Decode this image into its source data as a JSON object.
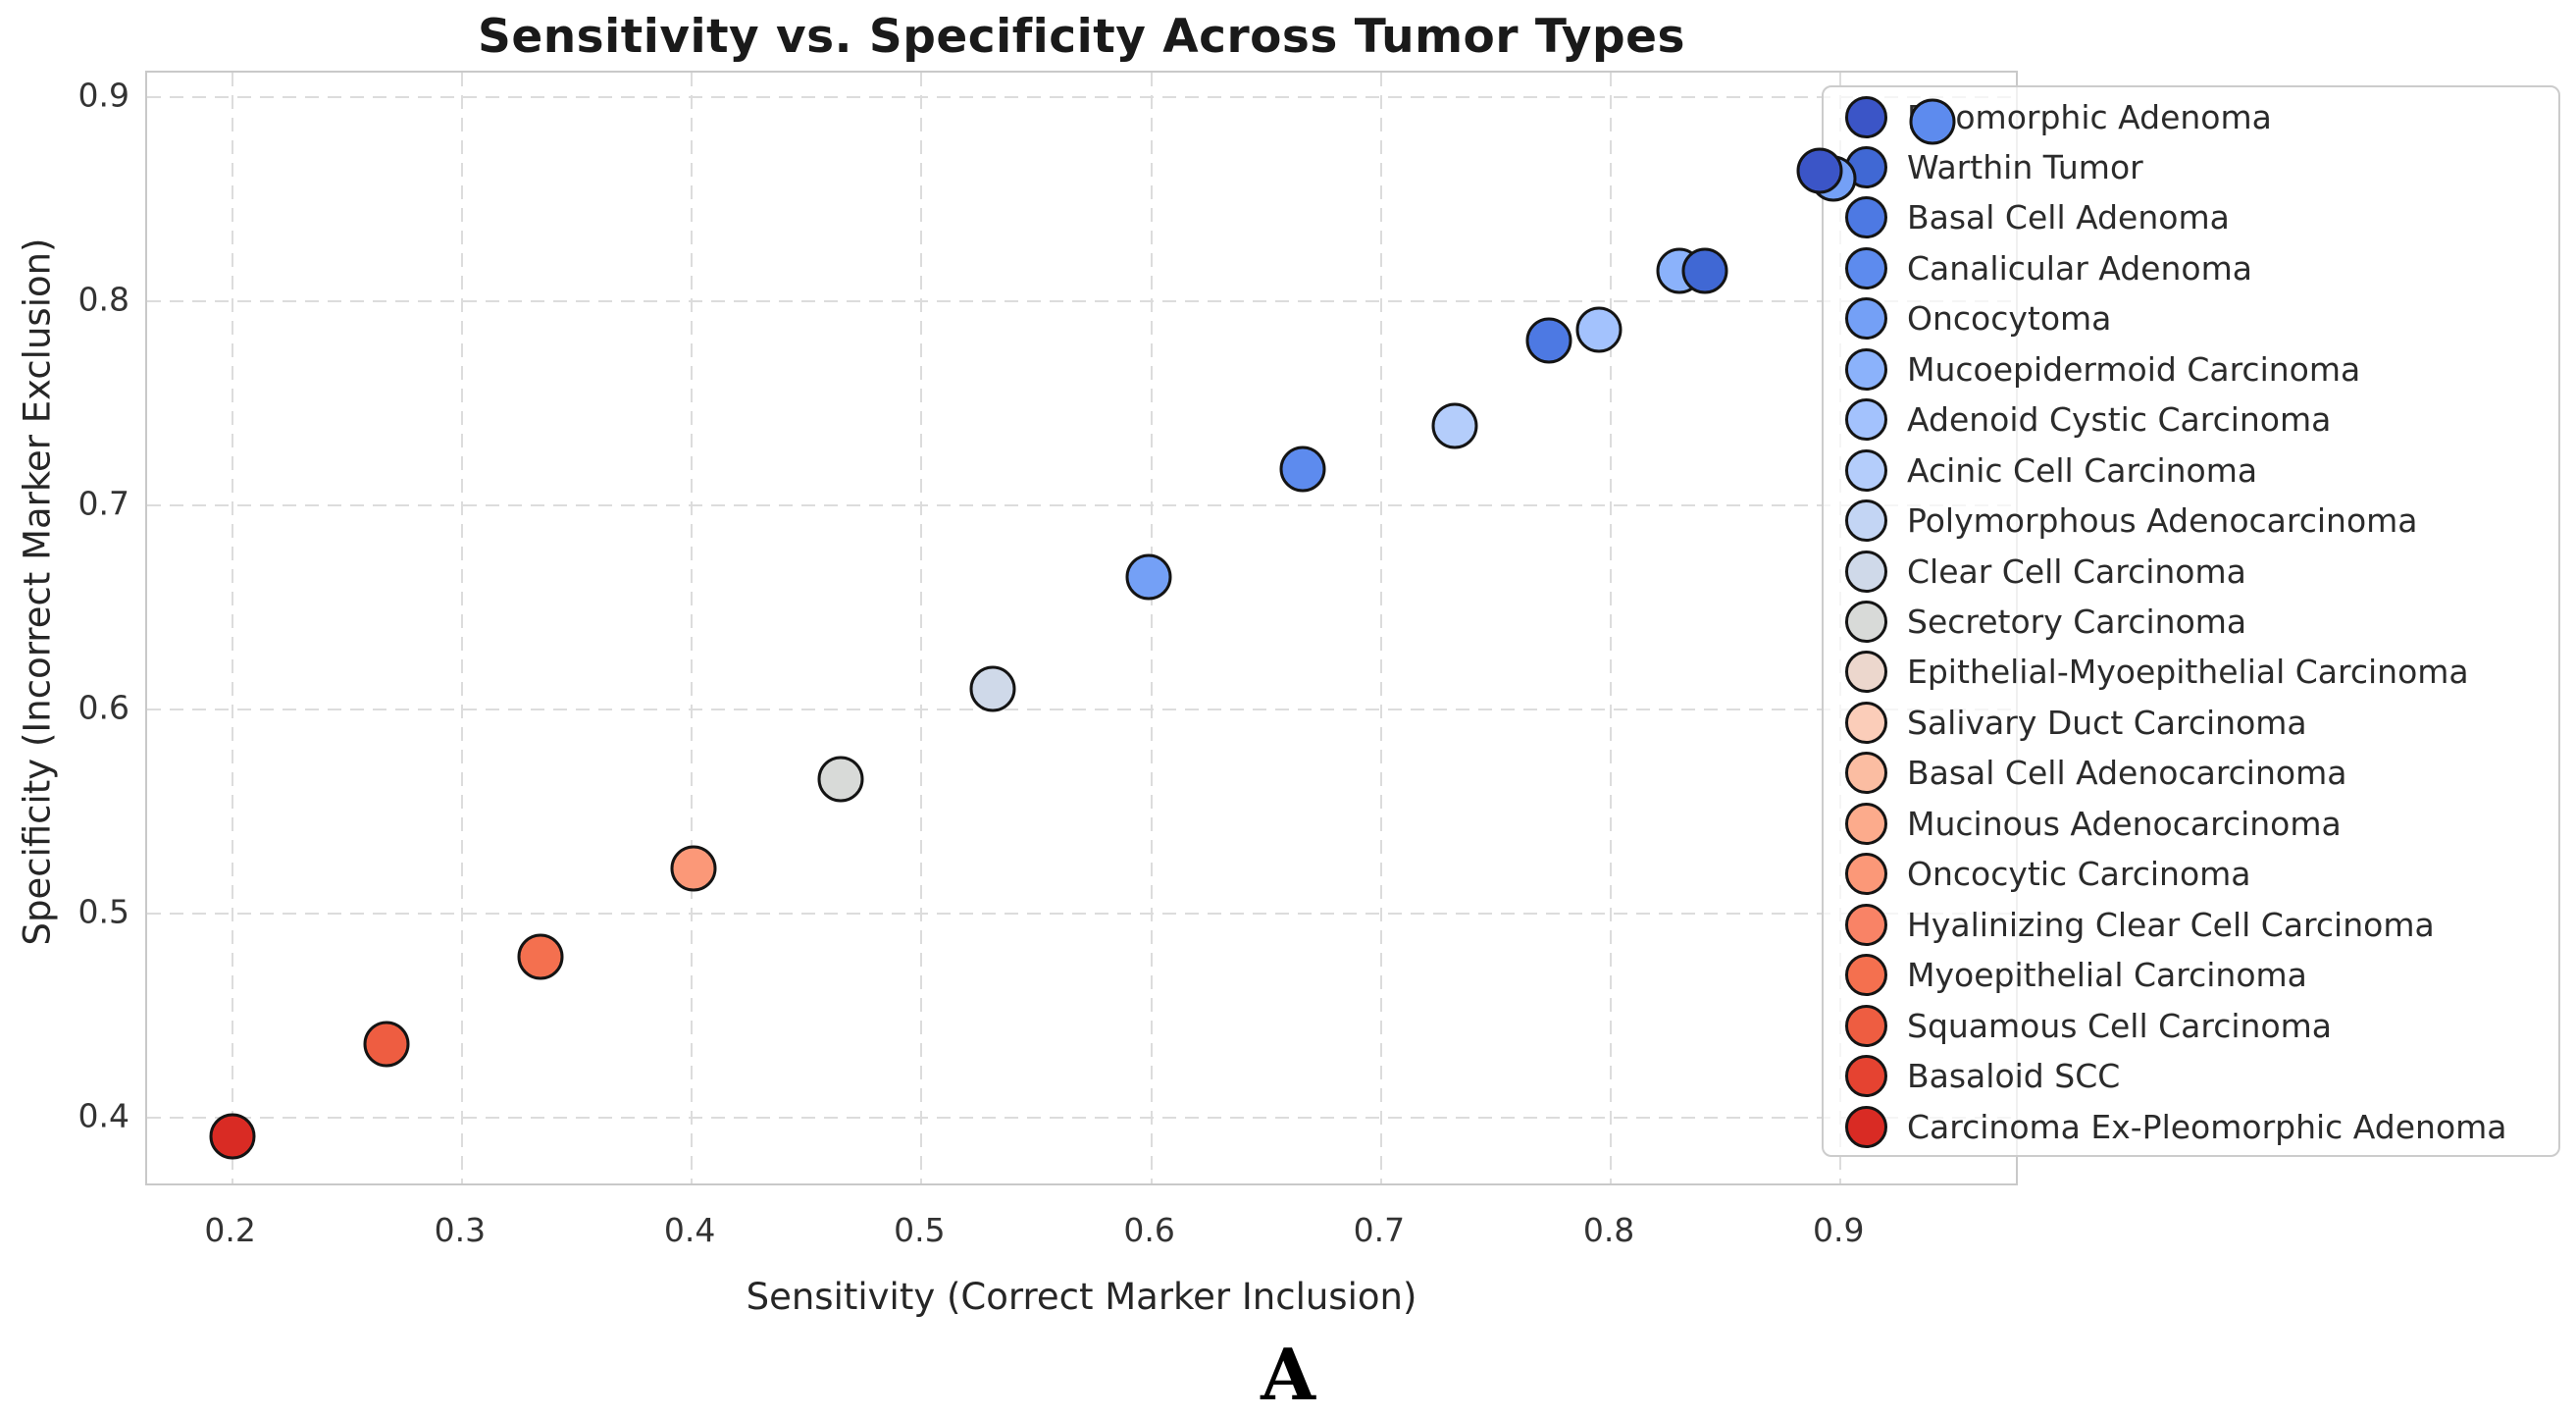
{
  "figure": {
    "title": "Sensitivity vs. Specificity Across Tumor Types",
    "xlabel": "Sensitivity (Correct Marker Inclusion)",
    "ylabel": "Specificity (Incorrect Marker Exclusion)",
    "panel_label": "A"
  },
  "chart_data": {
    "type": "scatter",
    "title": "Sensitivity vs. Specificity Across Tumor Types",
    "xlabel": "Sensitivity (Correct Marker Inclusion)",
    "ylabel": "Specificity (Incorrect Marker Exclusion)",
    "xlim": [
      0.163,
      0.978
    ],
    "ylim": [
      0.366,
      0.912
    ],
    "xticks": [
      0.2,
      0.3,
      0.4,
      0.5,
      0.6,
      0.7,
      0.8,
      0.9
    ],
    "yticks": [
      0.4,
      0.5,
      0.6,
      0.7,
      0.8,
      0.9
    ],
    "grid": "dashed",
    "legend_position": "upper right",
    "marker_edge_color": "#141414",
    "points": [
      {
        "x": 0.2,
        "y": 0.391,
        "color": "#d92b24"
      },
      {
        "x": 0.267,
        "y": 0.436,
        "color": "#ee5d41"
      },
      {
        "x": 0.334,
        "y": 0.479,
        "color": "#f4704f"
      },
      {
        "x": 0.401,
        "y": 0.522,
        "color": "#fb9878"
      },
      {
        "x": 0.465,
        "y": 0.566,
        "color": "#d8dad8"
      },
      {
        "x": 0.531,
        "y": 0.61,
        "color": "#cfd9e9"
      },
      {
        "x": 0.599,
        "y": 0.665,
        "color": "#74a0f6"
      },
      {
        "x": 0.666,
        "y": 0.718,
        "color": "#5d8bee"
      },
      {
        "x": 0.732,
        "y": 0.739,
        "color": "#b4cdfb"
      },
      {
        "x": 0.773,
        "y": 0.781,
        "color": "#4d79e3"
      },
      {
        "x": 0.795,
        "y": 0.786,
        "color": "#a3c2fd"
      },
      {
        "x": 0.83,
        "y": 0.815,
        "color": "#8bb2fb"
      },
      {
        "x": 0.841,
        "y": 0.815,
        "color": "#4068d4"
      },
      {
        "x": 0.897,
        "y": 0.86,
        "color": "#74a0f6"
      },
      {
        "x": 0.891,
        "y": 0.864,
        "color": "#3b55c7"
      },
      {
        "x": 0.94,
        "y": 0.888,
        "color": "#5d8bee"
      }
    ],
    "legend": [
      {
        "label": "Pleomorphic Adenoma",
        "color": "#3b55c7"
      },
      {
        "label": "Warthin Tumor",
        "color": "#4068d4"
      },
      {
        "label": "Basal Cell Adenoma",
        "color": "#4d79e3"
      },
      {
        "label": "Canalicular Adenoma",
        "color": "#5d8bee"
      },
      {
        "label": "Oncocytoma",
        "color": "#74a0f6"
      },
      {
        "label": "Mucoepidermoid Carcinoma",
        "color": "#8bb2fb"
      },
      {
        "label": "Adenoid Cystic Carcinoma",
        "color": "#a3c2fd"
      },
      {
        "label": "Acinic Cell Carcinoma",
        "color": "#b4cdfb"
      },
      {
        "label": "Polymorphous Adenocarcinoma",
        "color": "#c3d5f4"
      },
      {
        "label": "Clear Cell Carcinoma",
        "color": "#cfd9e9"
      },
      {
        "label": "Secretory Carcinoma",
        "color": "#d8dad8"
      },
      {
        "label": "Epithelial-Myoepithelial Carcinoma",
        "color": "#ecd7cd"
      },
      {
        "label": "Salivary Duct Carcinoma",
        "color": "#fbcdb9"
      },
      {
        "label": "Basal Cell Adenocarcinoma",
        "color": "#fbbda2"
      },
      {
        "label": "Mucinous Adenocarcinoma",
        "color": "#fcab8c"
      },
      {
        "label": "Oncocytic Carcinoma",
        "color": "#fb9878"
      },
      {
        "label": "Hyalinizing Clear Cell Carcinoma",
        "color": "#f98366"
      },
      {
        "label": "Myoepithelial Carcinoma",
        "color": "#f4704f"
      },
      {
        "label": "Squamous Cell Carcinoma",
        "color": "#ee5d41"
      },
      {
        "label": "Basaloid SCC",
        "color": "#e54331"
      },
      {
        "label": "Carcinoma Ex-Pleomorphic Adenoma",
        "color": "#d92b24"
      }
    ]
  }
}
